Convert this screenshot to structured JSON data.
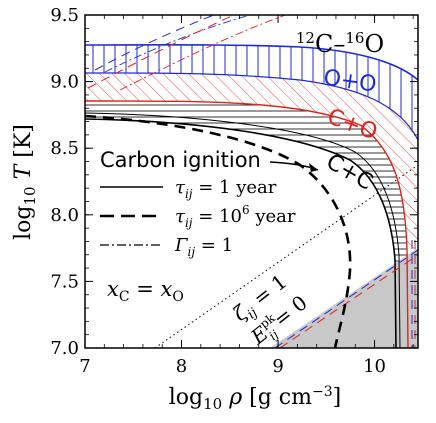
{
  "chart_data": {
    "type": "line",
    "title": "12C–16O",
    "xlabel": "log10 ρ [g cm^-3]",
    "ylabel": "log10 T [K]",
    "xlim": [
      7,
      10.45
    ],
    "ylim": [
      7.0,
      9.5
    ],
    "x_ticks": [
      "7",
      "8",
      "9",
      "10"
    ],
    "y_ticks": [
      "7.0",
      "7.5",
      "8.0",
      "8.5",
      "9.0",
      "9.5"
    ],
    "grid": false,
    "bands": [
      {
        "name": "O+O",
        "color": "#1f2bd6",
        "hatch": "vertical"
      },
      {
        "name": "C+O",
        "color": "#e0231c",
        "hatch": "diagonal"
      },
      {
        "name": "C+C",
        "color": "#000000",
        "hatch": "horizontal"
      }
    ],
    "legend": {
      "title": "Carbon ignition",
      "entries": [
        {
          "style": "solid",
          "label": "τij = 1 year"
        },
        {
          "style": "dashed",
          "label": "τij = 10^6 year"
        },
        {
          "style": "dashdot",
          "label": "Γij = 1"
        }
      ],
      "position": "middle-left"
    },
    "annotations": [
      "xC = xO",
      "ζij = 1",
      "Eij^pk = 0"
    ],
    "curves": [
      {
        "name": "C+C τ=1 yr",
        "style": "solid",
        "color": "#000000",
        "x": [
          7.0,
          8.0,
          9.0,
          9.6,
          9.9,
          10.05,
          10.12,
          10.15,
          10.16
        ],
        "y": [
          8.72,
          8.68,
          8.56,
          8.4,
          8.2,
          7.95,
          7.7,
          7.3,
          7.0
        ]
      },
      {
        "name": "C+C τ=10^6 yr",
        "style": "dashed",
        "color": "#000000",
        "x": [
          7.0,
          8.0,
          8.8,
          9.3,
          9.6,
          9.72,
          9.66,
          9.55
        ],
        "y": [
          8.73,
          8.62,
          8.44,
          8.2,
          7.95,
          7.6,
          7.25,
          7.0
        ]
      },
      {
        "name": "ζij = 1",
        "style": "dotted",
        "color": "#000000",
        "x": [
          7.75,
          10.4
        ],
        "y": [
          7.0,
          8.25
        ]
      }
    ]
  }
}
